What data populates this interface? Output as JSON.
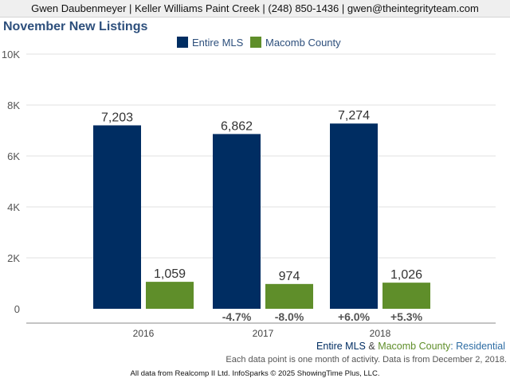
{
  "header": {
    "agent_line": "Gwen Daubenmeyer | Keller Williams Paint Creek | (248) 850-1436 | gwen@theintegrityteam.com"
  },
  "chart_data": {
    "type": "bar",
    "title": "November New Listings",
    "categories": [
      "2016",
      "2017",
      "2018"
    ],
    "series": [
      {
        "name": "Entire MLS",
        "color": "#002d62",
        "values": [
          7203,
          6862,
          7274
        ],
        "labels": [
          "7,203",
          "6,862",
          "7,274"
        ],
        "change_labels": [
          "",
          "-4.7%",
          "+6.0%"
        ]
      },
      {
        "name": "Macomb County",
        "color": "#5f8e2a",
        "values": [
          1059,
          974,
          1026
        ],
        "labels": [
          "1,059",
          "974",
          "1,026"
        ],
        "change_labels": [
          "",
          "-8.0%",
          "+5.3%"
        ]
      }
    ],
    "ylim": [
      0,
      10000
    ],
    "yticks": [
      {
        "value": 0,
        "label": "0"
      },
      {
        "value": 2000,
        "label": "2K"
      },
      {
        "value": 4000,
        "label": "4K"
      },
      {
        "value": 6000,
        "label": "6K"
      },
      {
        "value": 8000,
        "label": "8K"
      },
      {
        "value": 10000,
        "label": "10K"
      }
    ],
    "grid": true,
    "legend_position": "top-center"
  },
  "footer": {
    "series1": "Entire MLS",
    "ampersand": " & ",
    "series2": "Macomb County",
    "category": ": Residential",
    "note": "Each data point is one month of activity. Data is from December 2, 2018.",
    "copyright": "All data from Realcomp II Ltd. InfoSparks © 2025 ShowingTime Plus, LLC."
  }
}
